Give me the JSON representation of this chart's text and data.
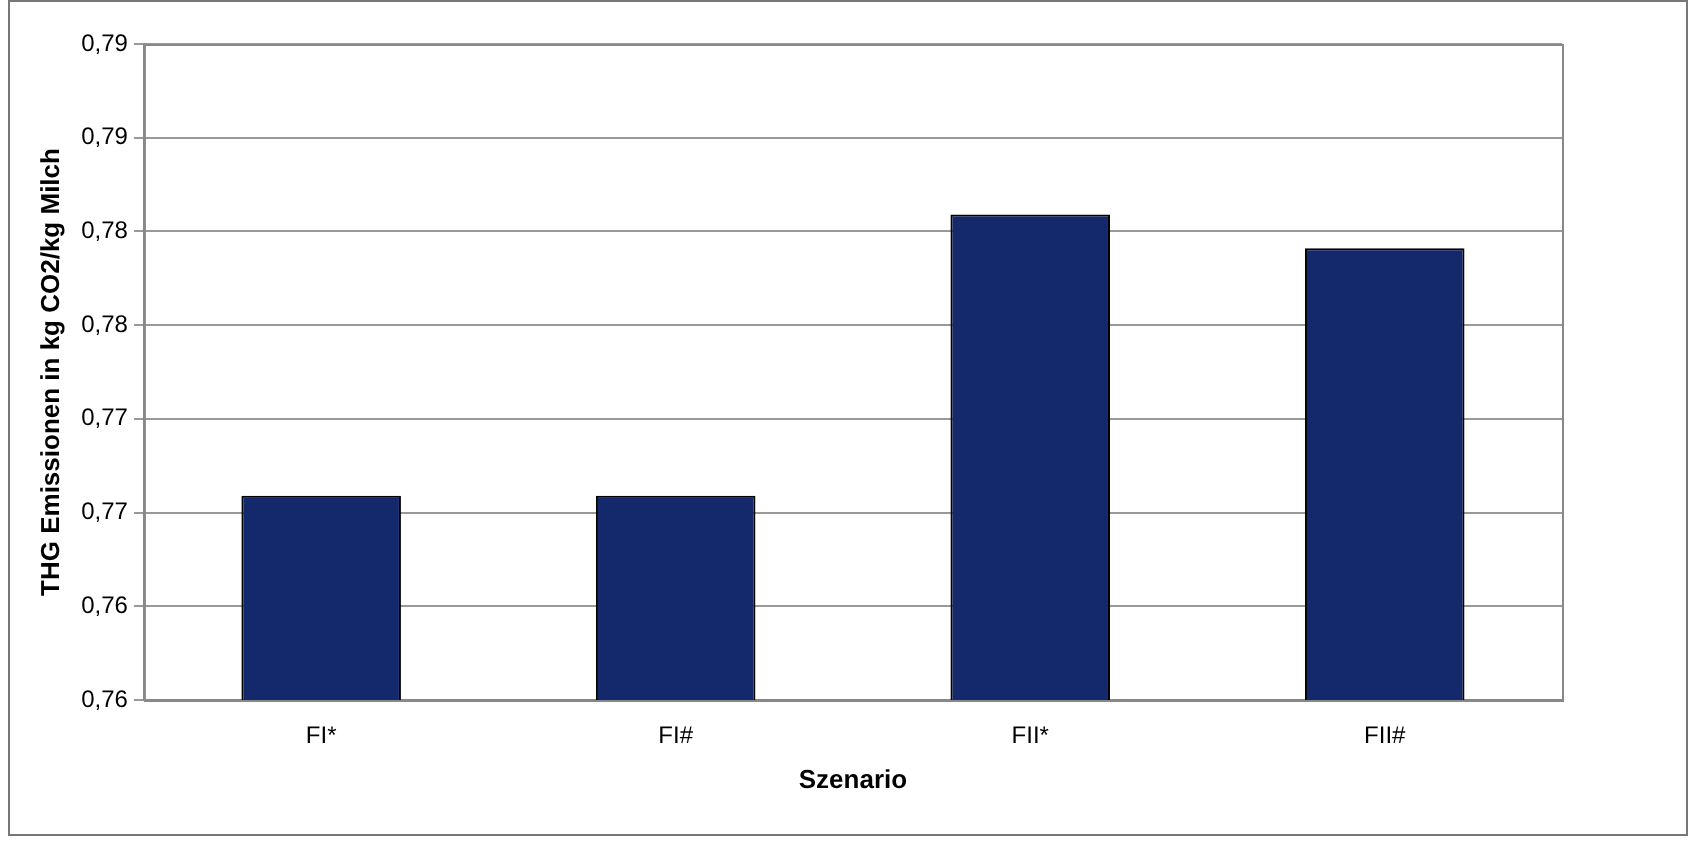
{
  "chart_data": {
    "type": "bar",
    "xlabel": "Szenario",
    "ylabel": "THG Emissionen in kg CO2/kg Milch",
    "categories": [
      "FI*",
      "FI#",
      "FII*",
      "FII#"
    ],
    "values": [
      0.7659,
      0.7659,
      0.7809,
      0.7791
    ],
    "color": "#13296b",
    "ylim": [
      0.755,
      0.79
    ],
    "yticks": [
      {
        "value": 0.755,
        "label": "0,76"
      },
      {
        "value": 0.76,
        "label": "0,76"
      },
      {
        "value": 0.765,
        "label": "0,77"
      },
      {
        "value": 0.77,
        "label": "0,77"
      },
      {
        "value": 0.775,
        "label": "0,78"
      },
      {
        "value": 0.78,
        "label": "0,78"
      },
      {
        "value": 0.785,
        "label": "0,79"
      },
      {
        "value": 0.79,
        "label": "0,79"
      }
    ],
    "grid": "y",
    "legend": false
  }
}
